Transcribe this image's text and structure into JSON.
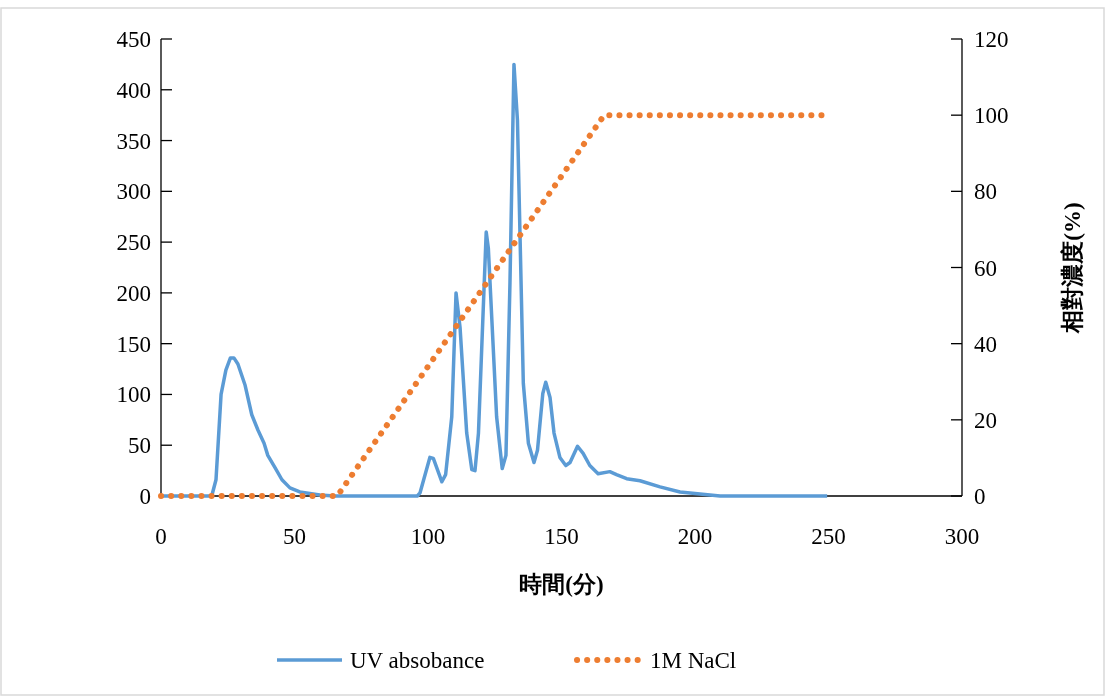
{
  "chart_data": {
    "type": "line",
    "xlabel": "時間(分)",
    "y2label": "相對濃度(%)",
    "xlim": [
      0,
      300
    ],
    "xticks": [
      0,
      50,
      100,
      150,
      200,
      250,
      300
    ],
    "ylim": [
      0,
      450
    ],
    "yticks": [
      0,
      50,
      100,
      150,
      200,
      250,
      300,
      350,
      400,
      450
    ],
    "y2lim": [
      0,
      120
    ],
    "y2ticks": [
      0,
      20,
      40,
      60,
      80,
      100,
      120
    ],
    "legend": "bottom",
    "series": [
      {
        "name": "UV absobance",
        "color": "#5b9bd5",
        "line_style": "solid",
        "x": [
          0,
          19,
          20.6,
          22.5,
          24.3,
          26,
          27.3,
          28.8,
          31.5,
          34,
          36.3,
          38.6,
          40,
          42.7,
          45.3,
          48.3,
          52,
          59.5,
          65,
          96,
          97,
          100.7,
          102,
          105.2,
          106.6,
          108.9,
          110.5,
          112,
          114.5,
          116.4,
          117.6,
          118.9,
          121.8,
          122.6,
          125.7,
          127.8,
          129.2,
          130.7,
          132.2,
          133.5,
          135.7,
          137.6,
          139.7,
          141,
          143,
          144.1,
          145.7,
          147.2,
          149.4,
          151.6,
          153.2,
          156,
          158.1,
          160.6,
          163.7,
          168.1,
          170.6,
          174.4,
          179.4,
          186.9,
          194.4,
          201.9,
          209.4,
          249.5
        ],
        "values": [
          0,
          0,
          16,
          100,
          124,
          136,
          136,
          130,
          109,
          80,
          65,
          52,
          40,
          28,
          16,
          8,
          4,
          1,
          0,
          0,
          3,
          38,
          37,
          14,
          21,
          78,
          200,
          166,
          62,
          26,
          25,
          62,
          260,
          244,
          78,
          27,
          40,
          210,
          425,
          370,
          111,
          52,
          33,
          45,
          101,
          112,
          97,
          62,
          38,
          30,
          33,
          49,
          42,
          30,
          22,
          24,
          21,
          17,
          15,
          9,
          4,
          2,
          0,
          0
        ]
      },
      {
        "name": "1M NaCl",
        "color": "#ed7d31",
        "line_style": "dotted",
        "axis": "y2",
        "x": [
          0,
          66,
          166,
          250
        ],
        "values": [
          0,
          0,
          100,
          100
        ]
      }
    ]
  }
}
